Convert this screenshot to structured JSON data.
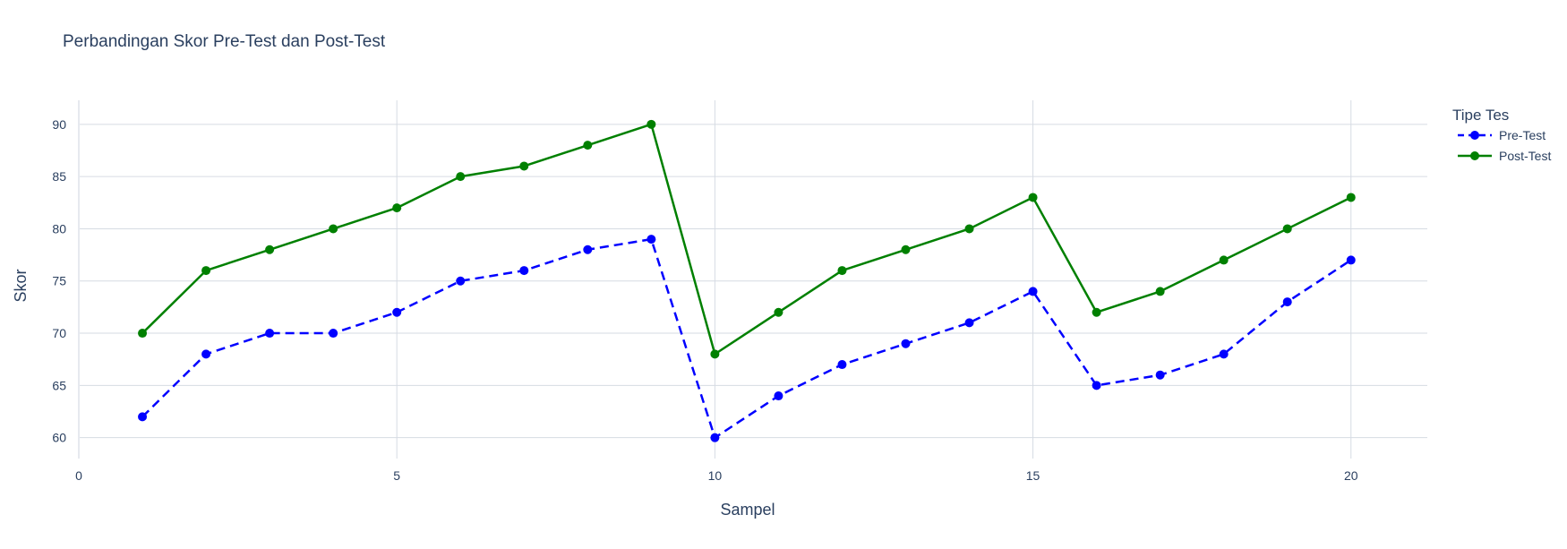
{
  "chart_data": {
    "type": "line",
    "title": "Perbandingan Skor Pre-Test dan Post-Test",
    "xlabel": "Sampel",
    "ylabel": "Skor",
    "xlim": [
      0,
      21.2
    ],
    "ylim": [
      58,
      92.3
    ],
    "x_ticks": [
      0,
      5,
      10,
      15,
      20
    ],
    "y_ticks": [
      60,
      65,
      70,
      75,
      80,
      85,
      90
    ],
    "grid": true,
    "legend": {
      "title": "Tipe Tes",
      "placement": "top-right"
    },
    "x": [
      1,
      2,
      3,
      4,
      5,
      6,
      7,
      8,
      9,
      10,
      11,
      12,
      13,
      14,
      15,
      16,
      17,
      18,
      19,
      20
    ],
    "series": [
      {
        "name": "Pre-Test",
        "color": "#0000ff",
        "dash": "dash",
        "values": [
          62,
          68,
          70,
          70,
          72,
          75,
          76,
          78,
          79,
          60,
          64,
          67,
          69,
          71,
          74,
          65,
          66,
          68,
          73,
          77
        ]
      },
      {
        "name": "Post-Test",
        "color": "#008000",
        "dash": "solid",
        "values": [
          70,
          76,
          78,
          80,
          82,
          85,
          86,
          88,
          90,
          68,
          72,
          76,
          78,
          80,
          83,
          72,
          74,
          77,
          80,
          83
        ]
      }
    ]
  }
}
